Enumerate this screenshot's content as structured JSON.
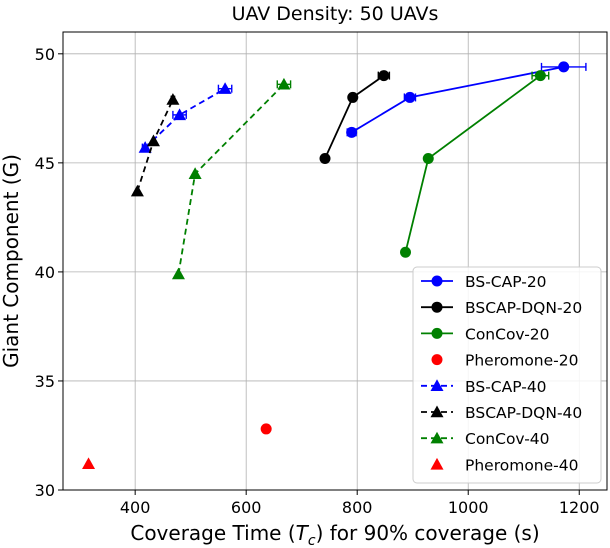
{
  "chart_data": {
    "type": "line",
    "title": "UAV Density: 50 UAVs",
    "xlabel_prefix": "Coverage Time (",
    "xlabel_symbol": "T",
    "xlabel_sub": "c",
    "xlabel_suffix": ") for 90% coverage (s)",
    "ylabel": "Giant Component (G)",
    "xlim": [
      270,
      1250
    ],
    "ylim": [
      30,
      51
    ],
    "xticks": [
      400,
      600,
      800,
      1000,
      1200
    ],
    "yticks": [
      30,
      35,
      40,
      45,
      50
    ],
    "grid": true,
    "legend_position": "lower-right",
    "series": [
      {
        "name": "BS-CAP-20",
        "color": "#0000ff",
        "marker": "circle",
        "line": "solid",
        "points": [
          {
            "x": 790,
            "y": 46.4,
            "xerr": 8
          },
          {
            "x": 895,
            "y": 48.0,
            "xerr": 10
          },
          {
            "x": 1172,
            "y": 49.4,
            "xerr": 40
          }
        ]
      },
      {
        "name": "BSCAP-DQN-20",
        "color": "#000000",
        "marker": "circle",
        "line": "solid",
        "points": [
          {
            "x": 742,
            "y": 45.2,
            "xerr": 0
          },
          {
            "x": 792,
            "y": 48.0,
            "xerr": 0
          },
          {
            "x": 848,
            "y": 49.0,
            "xerr": 10
          }
        ]
      },
      {
        "name": "ConCov-20",
        "color": "#008000",
        "marker": "circle",
        "line": "solid",
        "points": [
          {
            "x": 887,
            "y": 40.9,
            "xerr": 0
          },
          {
            "x": 928,
            "y": 45.2,
            "xerr": 0
          },
          {
            "x": 1130,
            "y": 49.0,
            "xerr": 15
          }
        ]
      },
      {
        "name": "Pheromone-20",
        "color": "#ff0000",
        "marker": "circle",
        "line": "none",
        "points": [
          {
            "x": 636,
            "y": 32.8,
            "xerr": 0
          }
        ]
      },
      {
        "name": "BS-CAP-40",
        "color": "#0000ff",
        "marker": "triangle",
        "line": "dashed",
        "points": [
          {
            "x": 418,
            "y": 45.7,
            "xerr": 5
          },
          {
            "x": 480,
            "y": 47.2,
            "xerr": 12
          },
          {
            "x": 562,
            "y": 48.4,
            "xerr": 12
          }
        ]
      },
      {
        "name": "BSCAP-DQN-40",
        "color": "#000000",
        "marker": "triangle",
        "line": "dashed",
        "points": [
          {
            "x": 404,
            "y": 43.7,
            "xerr": 0
          },
          {
            "x": 433,
            "y": 46.0,
            "xerr": 0
          },
          {
            "x": 468,
            "y": 47.9,
            "xerr": 3
          }
        ]
      },
      {
        "name": "ConCov-40",
        "color": "#008000",
        "marker": "triangle",
        "line": "dashed",
        "points": [
          {
            "x": 478,
            "y": 39.9,
            "xerr": 0
          },
          {
            "x": 508,
            "y": 44.5,
            "xerr": 0
          },
          {
            "x": 668,
            "y": 48.6,
            "xerr": 12
          }
        ]
      },
      {
        "name": "Pheromone-40",
        "color": "#ff0000",
        "marker": "triangle",
        "line": "none",
        "points": [
          {
            "x": 316,
            "y": 31.2,
            "xerr": 0
          }
        ]
      }
    ]
  }
}
